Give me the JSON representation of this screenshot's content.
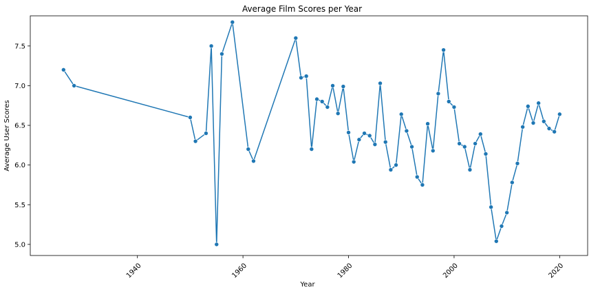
{
  "chart_data": {
    "type": "line",
    "title": "Average Film Scores per Year",
    "xlabel": "Year",
    "ylabel": "Average User Scores",
    "xlim": [
      1919.7,
      2025.3
    ],
    "ylim": [
      4.86,
      7.88
    ],
    "xticks": [
      "1940",
      "1960",
      "1980",
      "2000",
      "2020"
    ],
    "yticks": [
      "5.0",
      "5.5",
      "6.0",
      "6.5",
      "7.0",
      "7.5"
    ],
    "grid": false,
    "legend": "none",
    "color": "#1f77b4",
    "markers": true,
    "series": [
      {
        "x": [
          1926,
          1928,
          1950,
          1951,
          1953,
          1954,
          1955,
          1956,
          1958,
          1961,
          1962,
          1970,
          1971,
          1972,
          1973,
          1974,
          1975,
          1976,
          1977,
          1978,
          1979,
          1980,
          1981,
          1982,
          1983,
          1984,
          1985,
          1986,
          1987,
          1988,
          1989,
          1990,
          1991,
          1992,
          1993,
          1994,
          1995,
          1996,
          1997,
          1998,
          1999,
          2000,
          2001,
          2002,
          2003,
          2004,
          2005,
          2006,
          2007,
          2008,
          2009,
          2010,
          2011,
          2012,
          2013,
          2014,
          2015,
          2016,
          2017,
          2018,
          2019,
          2020
        ],
        "y": [
          7.2,
          7.0,
          6.6,
          6.3,
          6.4,
          7.5,
          5.0,
          7.4,
          7.8,
          6.2,
          6.05,
          7.6,
          7.1,
          7.12,
          6.2,
          6.83,
          6.8,
          6.73,
          7.0,
          6.65,
          6.99,
          6.41,
          6.04,
          6.32,
          6.4,
          6.37,
          6.26,
          7.03,
          6.29,
          5.94,
          6.0,
          6.64,
          6.43,
          6.23,
          5.85,
          5.75,
          6.52,
          6.18,
          6.9,
          7.45,
          6.8,
          6.73,
          6.27,
          6.23,
          5.94,
          6.27,
          6.39,
          6.14,
          5.47,
          5.04,
          5.23,
          5.4,
          5.78,
          6.02,
          6.48,
          6.74,
          6.53,
          6.78,
          6.55,
          6.46,
          6.42,
          6.64
        ]
      }
    ]
  }
}
